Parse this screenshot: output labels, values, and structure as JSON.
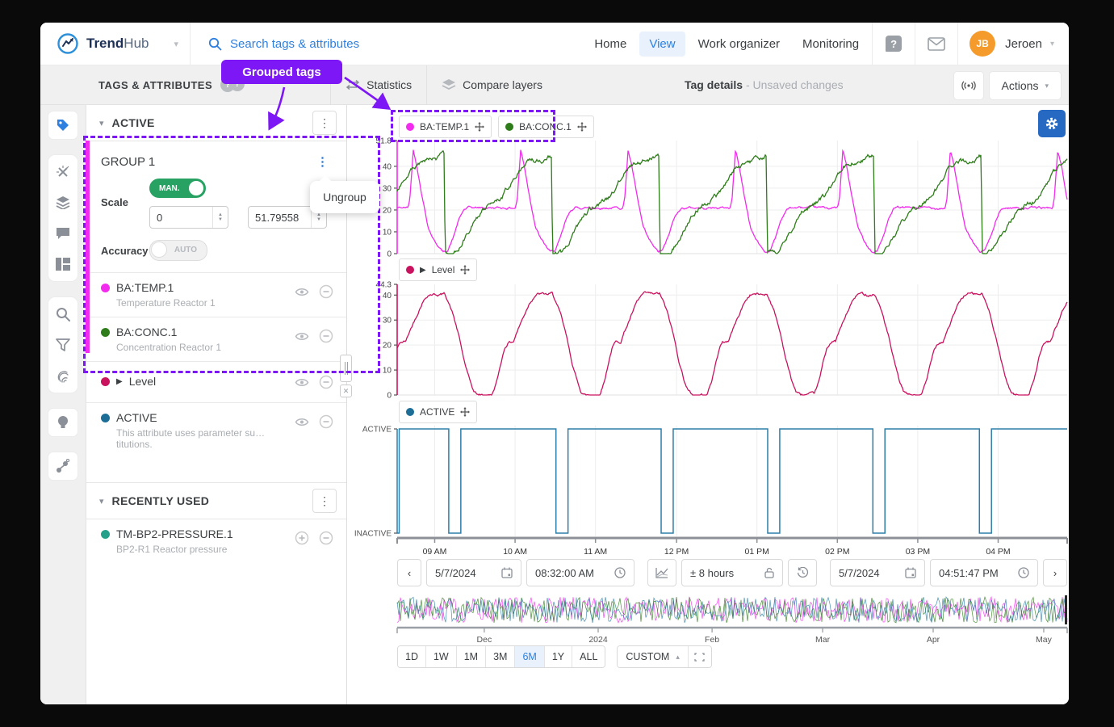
{
  "app": {
    "brand_bold": "Trend",
    "brand_light": "Hub"
  },
  "nav": {
    "search_placeholder": "Search tags & attributes",
    "items": [
      {
        "label": "Home"
      },
      {
        "label": "View",
        "active": true
      },
      {
        "label": "Work organizer"
      },
      {
        "label": "Monitoring"
      }
    ],
    "help_glyph": "?",
    "user": {
      "initials": "JB",
      "name": "Jeroen"
    }
  },
  "toolbar": {
    "panel_title": "TAGS & ATTRIBUTES",
    "info_glyph": "?",
    "tab_statistics": "Statistics",
    "tab_compare": "Compare layers",
    "status_title": "Tag details",
    "status_sub": "- Unsaved changes",
    "actions_label": "Actions"
  },
  "annotation": {
    "callout": "Grouped tags",
    "popup_item": "Ungroup"
  },
  "panel": {
    "active_header": "ACTIVE",
    "group": {
      "title": "GROUP 1",
      "scale_label": "Scale",
      "scale_toggle": "MAN.",
      "scale_min": "0",
      "scale_max": "51.79558",
      "accuracy_label": "Accuracy",
      "accuracy_toggle": "AUTO"
    },
    "tags": [
      {
        "name": "BA:TEMP.1",
        "desc": "Temperature Reactor 1",
        "color": "#f32bee"
      },
      {
        "name": "BA:CONC.1",
        "desc": "Concentration Reactor 1",
        "color": "#2e7d1a"
      }
    ],
    "level_tag": {
      "name": "Level",
      "color": "#c9135f"
    },
    "active_tag": {
      "name": "ACTIVE",
      "desc": "This attribute uses parameter su…titutions.",
      "color": "#1d6e96"
    },
    "recent_header": "RECENTLY USED",
    "recent_tag": {
      "name": "TM-BP2-PRESSURE.1",
      "desc": "BP2-R1 Reactor pressure",
      "color": "#27a08b"
    }
  },
  "x_axis": {
    "labels": [
      "09 AM",
      "10 AM",
      "11 AM",
      "12 PM",
      "01 PM",
      "02 PM",
      "03 PM",
      "04 PM"
    ],
    "fracs": [
      0.056,
      0.176,
      0.296,
      0.417,
      0.537,
      0.657,
      0.777,
      0.897
    ]
  },
  "chart_data": [
    {
      "type": "line",
      "id": "temp-conc",
      "ylim": [
        0,
        51.8
      ],
      "yticks": [
        {
          "v": 51.8,
          "label": "51.8"
        },
        {
          "v": 40,
          "label": "40"
        },
        {
          "v": 30,
          "label": "30"
        },
        {
          "v": 20,
          "label": "20"
        },
        {
          "v": 10,
          "label": "10"
        },
        {
          "v": 0,
          "label": "0"
        }
      ],
      "x_window": [
        "5/7/2024 08:32:00 AM",
        "5/7/2024 04:51:47 PM"
      ],
      "period_frac": 0.1603,
      "series": [
        {
          "name": "BA:TEMP.1",
          "color": "#f32bee",
          "phase": 0.9,
          "noise": 0.45,
          "cycle_points": [
            [
              0,
              21
            ],
            [
              0.018,
              25
            ],
            [
              0.05,
              47.5
            ],
            [
              0.085,
              40
            ],
            [
              0.13,
              27
            ],
            [
              0.19,
              12
            ],
            [
              0.24,
              6.5
            ],
            [
              0.29,
              3
            ],
            [
              0.33,
              0.6
            ],
            [
              0.37,
              1.5
            ],
            [
              0.42,
              7
            ],
            [
              0.47,
              15
            ],
            [
              0.52,
              20
            ],
            [
              0.56,
              21
            ],
            [
              1,
              21
            ]
          ]
        },
        {
          "name": "BA:CONC.1",
          "color": "#2e7d1a",
          "phase": 0.9,
          "noise": 1.0,
          "cycle_points": [
            [
              0,
              36
            ],
            [
              0.05,
              39.5
            ],
            [
              0.12,
              42
            ],
            [
              0.2,
              42.5
            ],
            [
              0.27,
              43.5
            ],
            [
              0.33,
              45
            ],
            [
              0.338,
              45
            ],
            [
              0.346,
              0
            ],
            [
              0.43,
              0
            ],
            [
              0.5,
              5
            ],
            [
              0.57,
              11
            ],
            [
              0.63,
              16
            ],
            [
              0.69,
              20
            ],
            [
              0.75,
              22
            ],
            [
              0.82,
              24
            ],
            [
              0.88,
              26.5
            ],
            [
              0.94,
              31
            ],
            [
              1,
              36
            ]
          ]
        }
      ]
    },
    {
      "type": "line",
      "id": "level",
      "ylim": [
        0,
        44.3
      ],
      "yticks": [
        {
          "v": 44.3,
          "label": "44.3"
        },
        {
          "v": 40,
          "label": "40"
        },
        {
          "v": 30,
          "label": "30"
        },
        {
          "v": 20,
          "label": "20"
        },
        {
          "v": 10,
          "label": "10"
        },
        {
          "v": 0,
          "label": "0"
        }
      ],
      "period_frac": 0.1603,
      "series": [
        {
          "name": "Level",
          "color": "#c9135f",
          "phase": 0.158,
          "noise": 0.5,
          "cycle_points": [
            [
              0,
              0
            ],
            [
              0.04,
              0
            ],
            [
              0.09,
              6
            ],
            [
              0.13,
              14
            ],
            [
              0.16,
              19
            ],
            [
              0.19,
              21
            ],
            [
              0.24,
              21.5
            ],
            [
              0.27,
              25
            ],
            [
              0.33,
              31
            ],
            [
              0.39,
              37
            ],
            [
              0.44,
              40
            ],
            [
              0.47,
              40.5
            ],
            [
              0.56,
              40.2
            ],
            [
              0.6,
              40.5
            ],
            [
              0.63,
              38
            ],
            [
              0.68,
              32
            ],
            [
              0.73,
              24
            ],
            [
              0.78,
              14
            ],
            [
              0.83,
              6
            ],
            [
              0.87,
              1.5
            ],
            [
              0.91,
              0
            ],
            [
              1,
              0
            ]
          ]
        }
      ]
    },
    {
      "type": "digital",
      "id": "active",
      "name": "ACTIVE",
      "color": "#2e7ea8",
      "labels": {
        "high": "ACTIVE",
        "low": "INACTIVE"
      },
      "inactive_intervals": [
        [
          0,
          0.003
        ],
        [
          0.077,
          0.095
        ],
        [
          0.237,
          0.255
        ],
        [
          0.394,
          0.412
        ],
        [
          0.553,
          0.571
        ],
        [
          0.71,
          0.728
        ],
        [
          0.869,
          0.887
        ]
      ]
    },
    {
      "type": "overview",
      "id": "overview",
      "colors": [
        "#f32bee",
        "#2e7d1a",
        "#2d7fa8"
      ],
      "ticks": [
        {
          "label": "Dec",
          "f": 0.13
        },
        {
          "label": "2024",
          "f": 0.3
        },
        {
          "label": "Feb",
          "f": 0.47
        },
        {
          "label": "Mar",
          "f": 0.635
        },
        {
          "label": "Apr",
          "f": 0.8
        },
        {
          "label": "May",
          "f": 0.965
        }
      ]
    }
  ],
  "timebar": {
    "start_date": "5/7/2024",
    "start_time": "08:32:00 AM",
    "duration": "± 8 hours",
    "end_date": "5/7/2024",
    "end_time": "04:51:47 PM",
    "back_glyph": "‹",
    "fwd_glyph": "›"
  },
  "ranges": {
    "buttons": [
      "1D",
      "1W",
      "1M",
      "3M",
      "6M",
      "1Y",
      "ALL"
    ],
    "active": "6M",
    "custom_label": "CUSTOM",
    "custom_caret": "▴"
  }
}
